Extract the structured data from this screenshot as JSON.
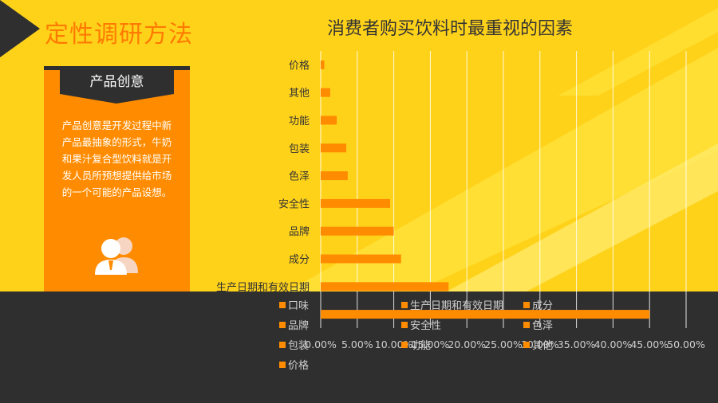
{
  "page_title": "定性调研方法",
  "card": {
    "tag": "产品创意",
    "text": "产品创意是开发过程中新产品最抽象的形式，牛奶和果汁复合型饮料就是开发人员所预想提供给市场的一个可能的产品设想。"
  },
  "colors": {
    "accent": "#ff8c00",
    "dark": "#2f2f2f",
    "background": "#ffd21a"
  },
  "chart_data": {
    "type": "bar",
    "orientation": "horizontal",
    "title": "消费者购买饮料时最重视的因素",
    "categories": [
      "价格",
      "其他",
      "功能",
      "包装",
      "色泽",
      "安全性",
      "品牌",
      "成分",
      "生产日期和有效日期",
      "口味"
    ],
    "values": [
      0.5,
      1.3,
      2.2,
      3.5,
      3.7,
      9.5,
      10.0,
      11.0,
      17.5,
      45.0
    ],
    "xlim": [
      0,
      50
    ],
    "x_ticks": [
      "0.00%",
      "5.00%",
      "10.00%",
      "15.00%",
      "20.00%",
      "25.00%",
      "30.00%",
      "35.00%",
      "40.00%",
      "45.00%",
      "50.00%"
    ],
    "legend": [
      "口味",
      "生产日期和有效日期",
      "成分",
      "品牌",
      "安全性",
      "色泽",
      "包装",
      "功能",
      "其他",
      "价格"
    ],
    "grid": true,
    "bar_color": "#ff8c00"
  }
}
